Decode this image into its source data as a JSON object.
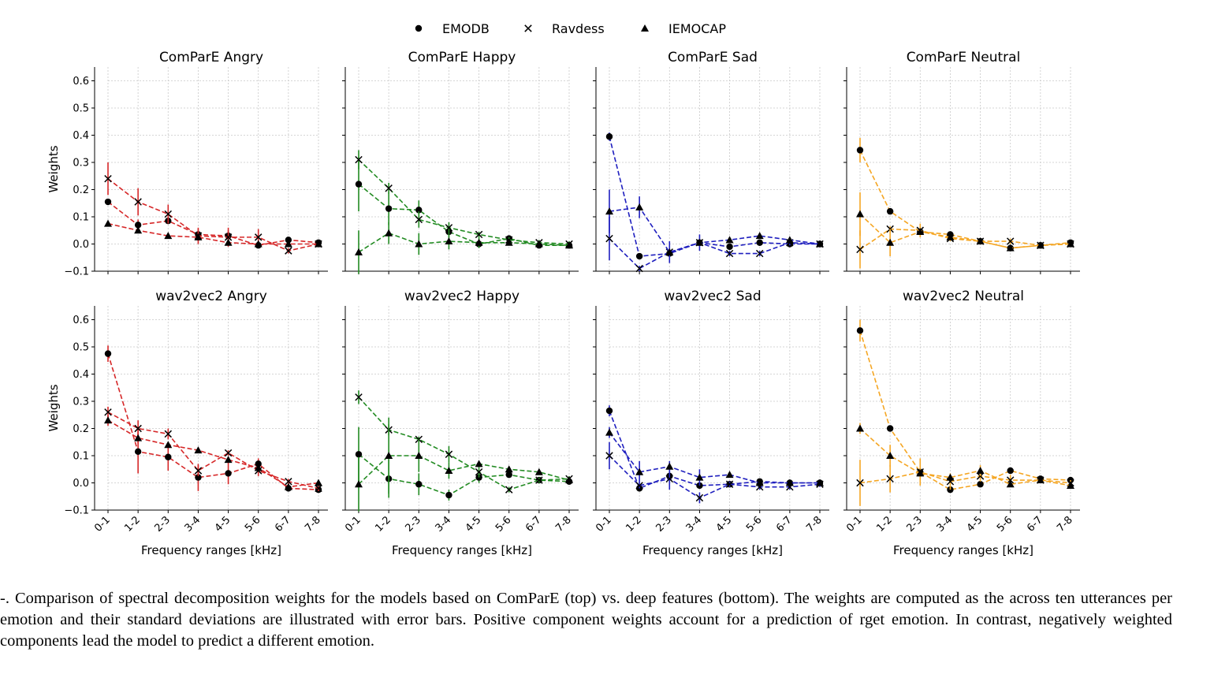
{
  "legend": {
    "position": "top-center",
    "entries": [
      {
        "label": "EMODB",
        "marker": "circle"
      },
      {
        "label": "Ravdess",
        "marker": "x"
      },
      {
        "label": "IEMOCAP",
        "marker": "triangle"
      }
    ]
  },
  "caption": "-.  Comparison of spectral decomposition weights for the models based on ComParE (top) vs. deep features (bottom). The weights are computed as the across ten utterances per emotion and their standard deviations are illustrated with error bars. Positive component weights account for a prediction of rget emotion. In contrast, negatively weighted components lead the model to predict a different emotion.",
  "chart_data": [
    {
      "type": "line",
      "title": "ComParE Angry",
      "color": "#d62728",
      "ylabel": "Weights",
      "xlabel": "",
      "ylim": [
        -0.1,
        0.65
      ],
      "yticks": [
        "−0.1",
        "0.0",
        "0.1",
        "0.2",
        "0.3",
        "0.4",
        "0.5",
        "0.6"
      ],
      "categories": [
        "0-1",
        "1-2",
        "2-3",
        "3-4",
        "4-5",
        "5-6",
        "6-7",
        "7-8"
      ],
      "series": [
        {
          "name": "EMODB",
          "values": [
            0.155,
            0.07,
            0.085,
            0.035,
            0.03,
            -0.005,
            0.015,
            0.005
          ],
          "err": [
            0.01,
            0.02,
            0.01,
            0.02,
            0.02,
            0.01,
            0.01,
            0.01
          ]
        },
        {
          "name": "Ravdess",
          "values": [
            0.24,
            0.155,
            0.11,
            0.03,
            0.025,
            0.025,
            -0.025,
            0.0
          ],
          "err": [
            0.06,
            0.05,
            0.035,
            0.03,
            0.035,
            0.03,
            0.01,
            0.01
          ]
        },
        {
          "name": "IEMOCAP",
          "values": [
            0.075,
            0.05,
            0.03,
            0.025,
            0.005,
            0.0,
            0.0,
            0.0
          ],
          "err": [
            0.01,
            0.01,
            0.01,
            0.015,
            0.01,
            0.01,
            0.01,
            0.01
          ]
        }
      ]
    },
    {
      "type": "line",
      "title": "ComParE Happy",
      "color": "#228b22",
      "ylabel": "",
      "xlabel": "",
      "ylim": [
        -0.1,
        0.65
      ],
      "categories": [
        "0-1",
        "1-2",
        "2-3",
        "3-4",
        "4-5",
        "5-6",
        "6-7",
        "7-8"
      ],
      "series": [
        {
          "name": "EMODB",
          "values": [
            0.22,
            0.13,
            0.125,
            0.045,
            0.0,
            0.02,
            -0.005,
            -0.005
          ],
          "err": [
            0.1,
            0.06,
            0.035,
            0.02,
            0.01,
            0.01,
            0.01,
            0.01
          ]
        },
        {
          "name": "Ravdess",
          "values": [
            0.31,
            0.205,
            0.09,
            0.06,
            0.035,
            0.015,
            0.005,
            0.0
          ],
          "err": [
            0.035,
            0.02,
            0.03,
            0.02,
            0.01,
            0.01,
            0.01,
            0.01
          ]
        },
        {
          "name": "IEMOCAP",
          "values": [
            -0.03,
            0.04,
            0.0,
            0.01,
            0.005,
            0.005,
            0.0,
            -0.005
          ],
          "err": [
            0.08,
            0.04,
            0.04,
            0.03,
            0.02,
            0.01,
            0.01,
            0.01
          ]
        }
      ]
    },
    {
      "type": "line",
      "title": "ComParE Sad",
      "color": "#1f1fbf",
      "ylabel": "",
      "xlabel": "",
      "ylim": [
        -0.1,
        0.65
      ],
      "categories": [
        "0-1",
        "1-2",
        "2-3",
        "3-4",
        "4-5",
        "5-6",
        "6-7",
        "7-8"
      ],
      "series": [
        {
          "name": "EMODB",
          "values": [
            0.395,
            -0.045,
            -0.035,
            0.005,
            -0.01,
            0.005,
            0.0,
            0.0
          ],
          "err": [
            0.015,
            0.01,
            0.01,
            0.01,
            0.01,
            0.01,
            0.01,
            0.01
          ]
        },
        {
          "name": "Ravdess",
          "values": [
            0.02,
            -0.09,
            -0.03,
            0.005,
            -0.035,
            -0.035,
            0.005,
            0.0
          ],
          "err": [
            0.08,
            0.01,
            0.04,
            0.03,
            0.01,
            0.01,
            0.01,
            0.01
          ]
        },
        {
          "name": "IEMOCAP",
          "values": [
            0.12,
            0.135,
            -0.03,
            0.005,
            0.015,
            0.03,
            0.015,
            0.0
          ],
          "err": [
            0.08,
            0.04,
            0.01,
            0.01,
            0.01,
            0.01,
            0.01,
            0.01
          ]
        }
      ]
    },
    {
      "type": "line",
      "title": "ComParE Neutral",
      "color": "#f5a623",
      "ylabel": "",
      "xlabel": "",
      "ylim": [
        -0.1,
        0.65
      ],
      "categories": [
        "0-1",
        "1-2",
        "2-3",
        "3-4",
        "4-5",
        "5-6",
        "6-7",
        "7-8"
      ],
      "series": [
        {
          "name": "EMODB",
          "values": [
            0.345,
            0.12,
            0.045,
            0.035,
            0.01,
            -0.015,
            -0.005,
            0.005
          ],
          "err": [
            0.045,
            0.01,
            0.01,
            0.01,
            0.01,
            0.01,
            0.01,
            0.01
          ]
        },
        {
          "name": "Ravdess",
          "values": [
            -0.02,
            0.055,
            0.05,
            0.02,
            0.01,
            0.01,
            -0.005,
            0.0
          ],
          "err": [
            0.07,
            0.01,
            0.025,
            0.01,
            0.01,
            0.01,
            0.01,
            0.01
          ]
        },
        {
          "name": "IEMOCAP",
          "values": [
            0.11,
            0.005,
            0.045,
            0.025,
            0.01,
            -0.015,
            -0.005,
            0.0
          ],
          "err": [
            0.08,
            0.05,
            0.02,
            0.01,
            0.01,
            0.01,
            0.01,
            0.01
          ]
        }
      ]
    },
    {
      "type": "line",
      "title": "wav2vec2 Angry",
      "color": "#d62728",
      "ylabel": "Weights",
      "xlabel": "Frequency ranges [kHz]",
      "ylim": [
        -0.1,
        0.65
      ],
      "yticks": [
        "−0.1",
        "0.0",
        "0.1",
        "0.2",
        "0.3",
        "0.4",
        "0.5",
        "0.6"
      ],
      "categories": [
        "0-1",
        "1-2",
        "2-3",
        "3-4",
        "4-5",
        "5-6",
        "6-7",
        "7-8"
      ],
      "series": [
        {
          "name": "EMODB",
          "values": [
            0.475,
            0.115,
            0.095,
            0.02,
            0.035,
            0.07,
            -0.02,
            -0.025
          ],
          "err": [
            0.03,
            0.08,
            0.05,
            0.05,
            0.04,
            0.02,
            0.01,
            0.01
          ]
        },
        {
          "name": "Ravdess",
          "values": [
            0.26,
            0.2,
            0.18,
            0.045,
            0.11,
            0.045,
            0.005,
            -0.02
          ],
          "err": [
            0.02,
            0.03,
            0.02,
            0.02,
            0.01,
            0.02,
            0.01,
            0.01
          ]
        },
        {
          "name": "IEMOCAP",
          "values": [
            0.23,
            0.165,
            0.14,
            0.12,
            0.085,
            0.055,
            -0.015,
            0.0
          ],
          "err": [
            0.02,
            0.02,
            0.01,
            0.01,
            0.01,
            0.01,
            0.01,
            0.01
          ]
        }
      ]
    },
    {
      "type": "line",
      "title": "wav2vec2 Happy",
      "color": "#228b22",
      "ylabel": "",
      "xlabel": "Frequency ranges [kHz]",
      "ylim": [
        -0.1,
        0.65
      ],
      "categories": [
        "0-1",
        "1-2",
        "2-3",
        "3-4",
        "4-5",
        "5-6",
        "6-7",
        "7-8"
      ],
      "series": [
        {
          "name": "EMODB",
          "values": [
            0.105,
            0.015,
            -0.005,
            -0.045,
            0.02,
            0.03,
            0.01,
            0.005
          ],
          "err": [
            0.1,
            0.07,
            0.04,
            0.02,
            0.02,
            0.01,
            0.01,
            0.01
          ]
        },
        {
          "name": "Ravdess",
          "values": [
            0.315,
            0.195,
            0.16,
            0.105,
            0.04,
            -0.025,
            0.01,
            0.015
          ],
          "err": [
            0.025,
            0.02,
            0.01,
            0.03,
            0.02,
            0.01,
            0.01,
            0.01
          ]
        },
        {
          "name": "IEMOCAP",
          "values": [
            -0.005,
            0.1,
            0.1,
            0.045,
            0.07,
            0.05,
            0.04,
            0.01
          ],
          "err": [
            0.1,
            0.14,
            0.06,
            0.03,
            0.01,
            0.01,
            0.01,
            0.01
          ]
        }
      ]
    },
    {
      "type": "line",
      "title": "wav2vec2 Sad",
      "color": "#1f1fbf",
      "ylabel": "",
      "xlabel": "Frequency ranges [kHz]",
      "ylim": [
        -0.1,
        0.65
      ],
      "categories": [
        "0-1",
        "1-2",
        "2-3",
        "3-4",
        "4-5",
        "5-6",
        "6-7",
        "7-8"
      ],
      "series": [
        {
          "name": "EMODB",
          "values": [
            0.265,
            -0.02,
            0.025,
            -0.01,
            -0.005,
            0.005,
            0.0,
            0.0
          ],
          "err": [
            0.02,
            0.01,
            0.015,
            0.01,
            0.01,
            0.01,
            0.01,
            0.01
          ]
        },
        {
          "name": "Ravdess",
          "values": [
            0.1,
            -0.01,
            0.015,
            -0.055,
            -0.005,
            -0.015,
            -0.015,
            -0.005
          ],
          "err": [
            0.05,
            0.01,
            0.04,
            0.02,
            0.01,
            0.01,
            0.01,
            0.01
          ]
        },
        {
          "name": "IEMOCAP",
          "values": [
            0.185,
            0.04,
            0.06,
            0.02,
            0.03,
            0.0,
            0.0,
            0.0
          ],
          "err": [
            0.02,
            0.04,
            0.02,
            0.03,
            0.01,
            0.01,
            0.01,
            0.01
          ]
        }
      ]
    },
    {
      "type": "line",
      "title": "wav2vec2 Neutral",
      "color": "#f5a623",
      "ylabel": "",
      "xlabel": "Frequency ranges [kHz]",
      "ylim": [
        -0.1,
        0.65
      ],
      "categories": [
        "0-1",
        "1-2",
        "2-3",
        "3-4",
        "4-5",
        "5-6",
        "6-7",
        "7-8"
      ],
      "series": [
        {
          "name": "EMODB",
          "values": [
            0.56,
            0.2,
            0.04,
            -0.025,
            -0.005,
            0.045,
            0.015,
            0.01
          ],
          "err": [
            0.04,
            0.01,
            0.01,
            0.01,
            0.01,
            0.01,
            0.01,
            0.01
          ]
        },
        {
          "name": "Ravdess",
          "values": [
            0.0,
            0.015,
            0.04,
            0.005,
            0.025,
            0.01,
            0.01,
            0.0
          ],
          "err": [
            0.085,
            0.05,
            0.05,
            0.03,
            0.02,
            0.02,
            0.01,
            0.01
          ]
        },
        {
          "name": "IEMOCAP",
          "values": [
            0.2,
            0.1,
            0.035,
            0.02,
            0.045,
            -0.005,
            0.01,
            -0.01
          ],
          "err": [
            0.02,
            0.04,
            0.02,
            0.01,
            0.02,
            0.01,
            0.01,
            0.01
          ]
        }
      ]
    }
  ]
}
